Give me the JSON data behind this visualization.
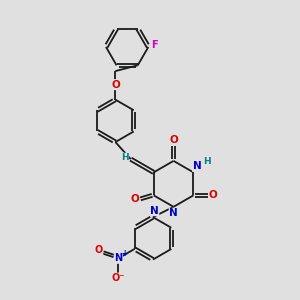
{
  "bg_color": "#e0e0e0",
  "bond_color": "#1a1a1a",
  "bond_width": 1.3,
  "F_color": "#cc00cc",
  "O_color": "#dd0000",
  "N_color": "#0000cc",
  "H_color": "#008080",
  "figsize": [
    3.0,
    3.0
  ],
  "dpi": 100,
  "xlim": [
    0,
    10
  ],
  "ylim": [
    0,
    10
  ]
}
